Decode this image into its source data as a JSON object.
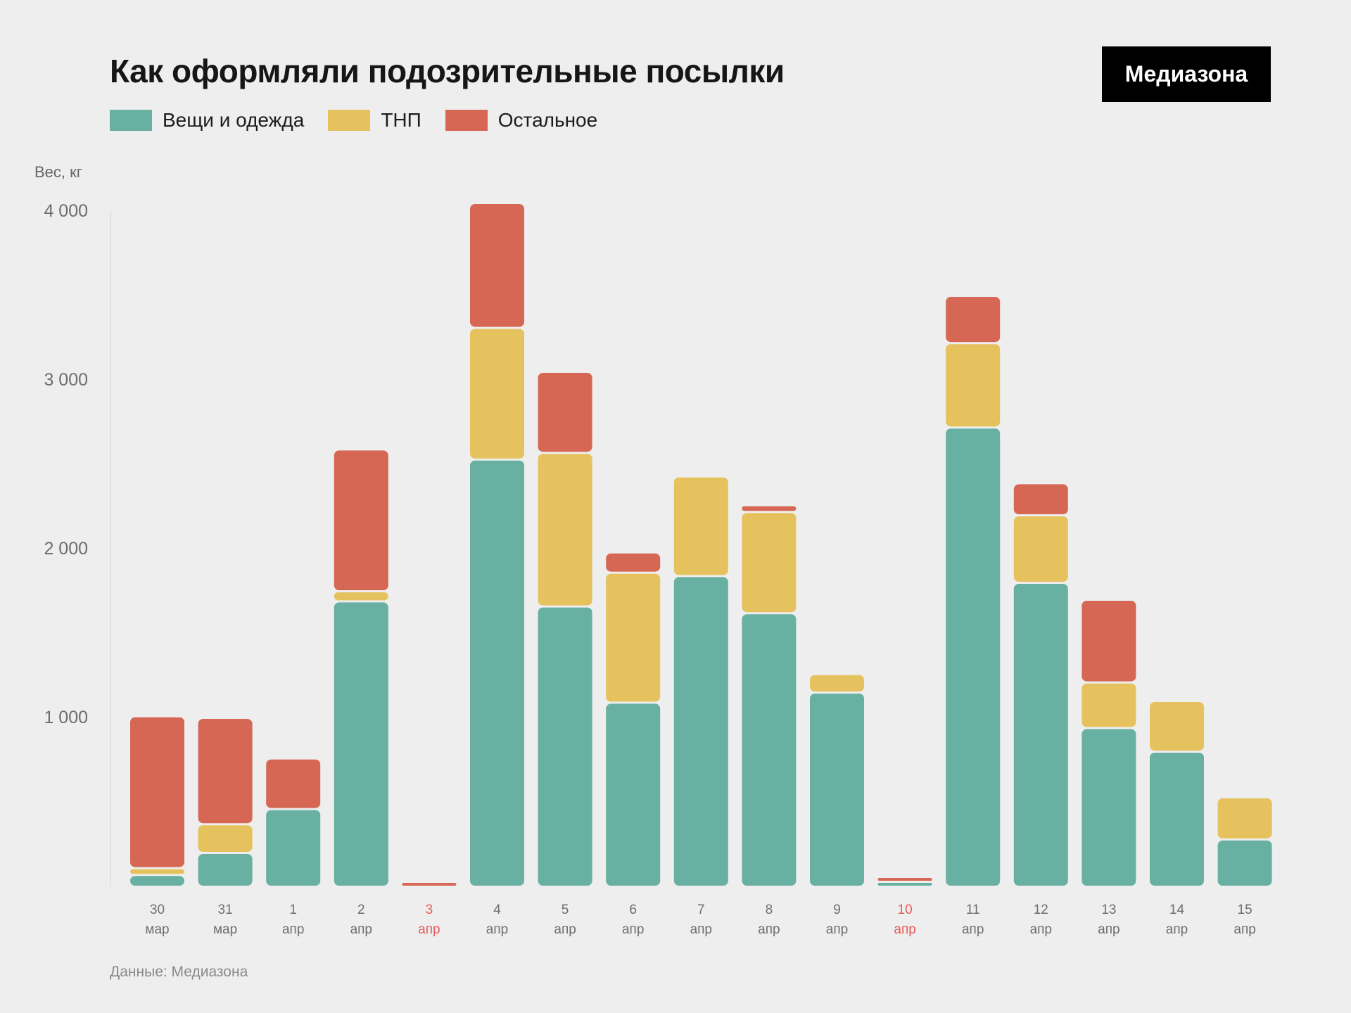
{
  "header": {
    "title": "Как оформляли подозрительные посылки",
    "logo": "Медиазона"
  },
  "footer": {
    "source": "Данные: Медиазона"
  },
  "chart_data": {
    "type": "bar",
    "stacked": true,
    "title": "Как оформляли подозрительные посылки",
    "xlabel": "",
    "ylabel": "Вес, кг",
    "ylim": [
      0,
      4000
    ],
    "yticks": [
      1000,
      2000,
      3000,
      4000
    ],
    "ytick_labels": [
      "1 000",
      "2 000",
      "3 000",
      "4 000"
    ],
    "grid": false,
    "legend_position": "top-left",
    "categories": [
      {
        "day": "30",
        "month": "мар",
        "highlight": false
      },
      {
        "day": "31",
        "month": "мар",
        "highlight": false
      },
      {
        "day": "1",
        "month": "апр",
        "highlight": false
      },
      {
        "day": "2",
        "month": "апр",
        "highlight": false
      },
      {
        "day": "3",
        "month": "апр",
        "highlight": true
      },
      {
        "day": "4",
        "month": "апр",
        "highlight": false
      },
      {
        "day": "5",
        "month": "апр",
        "highlight": false
      },
      {
        "day": "6",
        "month": "апр",
        "highlight": false
      },
      {
        "day": "7",
        "month": "апр",
        "highlight": false
      },
      {
        "day": "8",
        "month": "апр",
        "highlight": false
      },
      {
        "day": "9",
        "month": "апр",
        "highlight": false
      },
      {
        "day": "10",
        "month": "апр",
        "highlight": true
      },
      {
        "day": "11",
        "month": "апр",
        "highlight": false
      },
      {
        "day": "12",
        "month": "апр",
        "highlight": false
      },
      {
        "day": "13",
        "month": "апр",
        "highlight": false
      },
      {
        "day": "14",
        "month": "апр",
        "highlight": false
      },
      {
        "day": "15",
        "month": "апр",
        "highlight": false
      }
    ],
    "series": [
      {
        "name": "Вещи и одежда",
        "color": "#67b0a2",
        "values": [
          70,
          200,
          460,
          1690,
          0,
          2530,
          1660,
          1090,
          1840,
          1620,
          1150,
          20,
          2720,
          1800,
          940,
          800,
          280
        ]
      },
      {
        "name": "ТНП",
        "color": "#e5c25d",
        "values": [
          40,
          170,
          0,
          60,
          0,
          780,
          910,
          770,
          590,
          600,
          110,
          0,
          500,
          400,
          270,
          300,
          250
        ]
      },
      {
        "name": "Остальное",
        "color": "#d66754",
        "values": [
          900,
          630,
          300,
          840,
          20,
          740,
          480,
          120,
          0,
          40,
          0,
          15,
          280,
          190,
          490,
          0,
          0
        ]
      }
    ],
    "highlight_color": "#ea5a5a"
  }
}
